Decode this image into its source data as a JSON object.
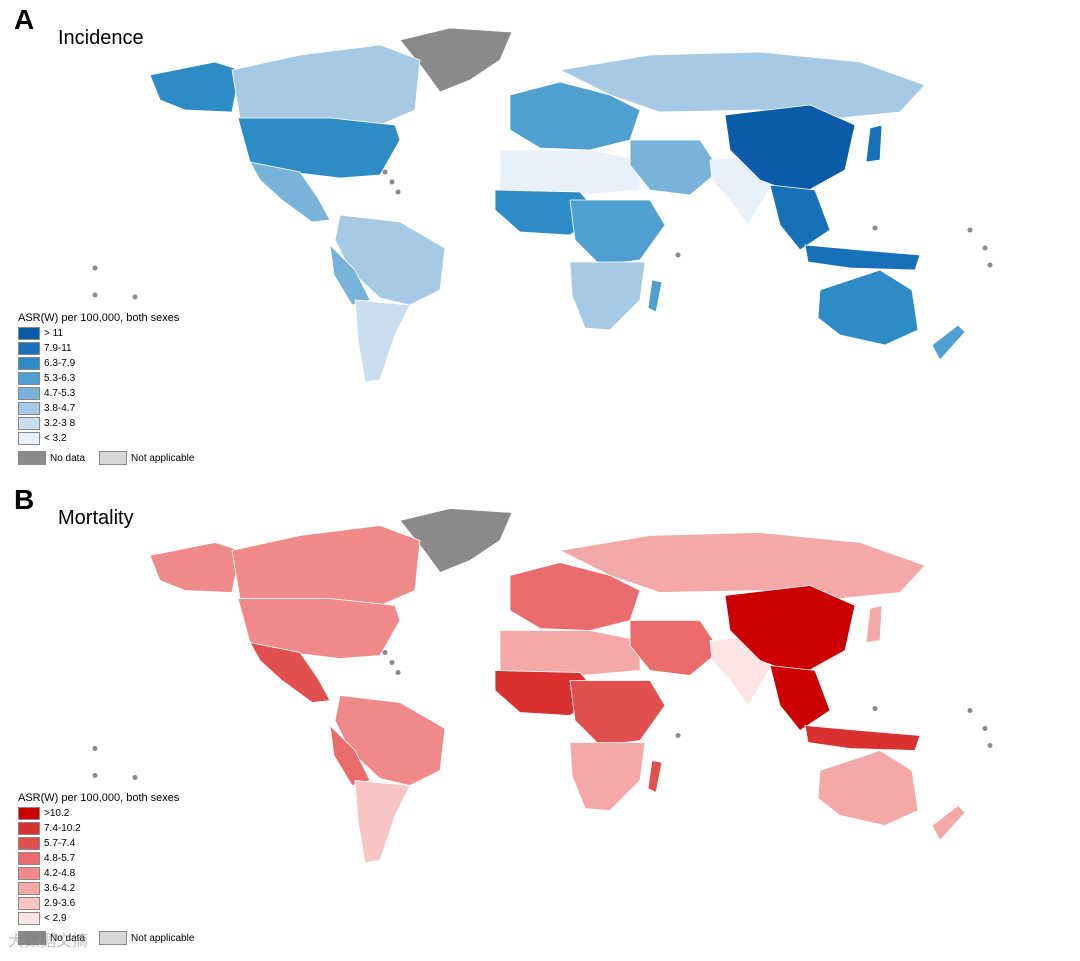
{
  "panels": [
    {
      "letter": "A",
      "title": "Incidence",
      "legend_title": "ASR(W) per 100,000, both sexes",
      "legend_items": [
        {
          "label": "> 11",
          "color": "#0a5ca8"
        },
        {
          "label": "7.9-11",
          "color": "#1870b8"
        },
        {
          "label": "6.3-7.9",
          "color": "#2d8cc6"
        },
        {
          "label": "5.3-6.3",
          "color": "#4f9fd0"
        },
        {
          "label": "4.7-5.3",
          "color": "#7ab3da"
        },
        {
          "label": "3.8-4.7",
          "color": "#a6c9e6"
        },
        {
          "label": "3.2-3 8",
          "color": "#cadef0"
        },
        {
          "label": "< 3.2",
          "color": "#e8f1fa"
        }
      ],
      "no_data_label": "No data",
      "no_data_color": "#8a8a8a",
      "na_label": "Not applicable",
      "na_color": "#d8d8d8"
    },
    {
      "letter": "B",
      "title": "Mortality",
      "legend_title": "ASR(W) per 100,000, both sexes",
      "legend_items": [
        {
          "label": ">10.2",
          "color": "#cc0000"
        },
        {
          "label": "7.4-10.2",
          "color": "#d93030"
        },
        {
          "label": "5.7-7.4",
          "color": "#e24f4f"
        },
        {
          "label": "4.8-5.7",
          "color": "#ea6b6b"
        },
        {
          "label": "4.2-4.8",
          "color": "#f08a8a"
        },
        {
          "label": "3.6-4.2",
          "color": "#f4a8a8"
        },
        {
          "label": "2.9-3.6",
          "color": "#f8c4c4"
        },
        {
          "label": "< 2.9",
          "color": "#fde4e4"
        }
      ],
      "no_data_label": "No data",
      "no_data_color": "#8a8a8a",
      "na_label": "Not applicable",
      "na_color": "#d8d8d8"
    }
  ],
  "watermark": "大数据文摘"
}
